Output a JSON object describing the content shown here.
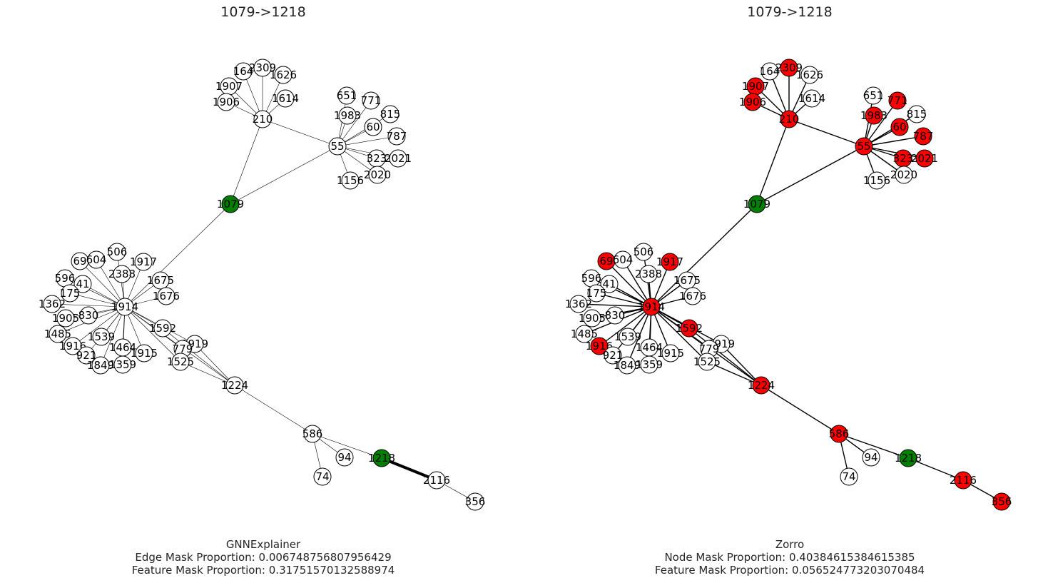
{
  "panels": [
    {
      "title": "1079->1218",
      "caption": {
        "method": "GNNExplainer",
        "line2": "Edge Mask Proportion: 0.006748756807956429",
        "line3": "Feature Mask Proportion: 0.31751570132588974"
      },
      "highlighted_nodes": [],
      "target_nodes": [
        "1079",
        "1218"
      ],
      "edge_style": "thin",
      "bold_edges": [
        [
          "1218",
          "2116"
        ]
      ]
    },
    {
      "title": "1079->1218",
      "caption": {
        "method": "Zorro",
        "line2": "Node Mask Proportion: 0.40384615384615385",
        "line3": "Feature Mask Proportion: 0.056524773203070484"
      },
      "highlighted_nodes": [
        "2309",
        "1907",
        "1906",
        "210",
        "771",
        "1983",
        "60",
        "787",
        "55",
        "323",
        "2021",
        "69",
        "1917",
        "1914",
        "1592",
        "1916",
        "1224",
        "586",
        "2116",
        "356"
      ],
      "target_nodes": [
        "1079",
        "1218"
      ],
      "edge_style": "normal",
      "bold_edges": []
    }
  ],
  "colors": {
    "node_default": "#ffffff",
    "node_target": "#008000",
    "node_highlight": "#ff0000",
    "node_stroke": "#000000",
    "edge": "#000000"
  },
  "graph": {
    "nodes": [
      {
        "id": "164"
      },
      {
        "id": "2309"
      },
      {
        "id": "1626"
      },
      {
        "id": "1907"
      },
      {
        "id": "1614"
      },
      {
        "id": "1906"
      },
      {
        "id": "210"
      },
      {
        "id": "651"
      },
      {
        "id": "771"
      },
      {
        "id": "1983"
      },
      {
        "id": "815"
      },
      {
        "id": "60"
      },
      {
        "id": "787"
      },
      {
        "id": "55"
      },
      {
        "id": "323"
      },
      {
        "id": "2021"
      },
      {
        "id": "2020"
      },
      {
        "id": "1156"
      },
      {
        "id": "1079"
      },
      {
        "id": "506"
      },
      {
        "id": "69"
      },
      {
        "id": "604"
      },
      {
        "id": "1917"
      },
      {
        "id": "2388"
      },
      {
        "id": "596"
      },
      {
        "id": "41"
      },
      {
        "id": "1675"
      },
      {
        "id": "175"
      },
      {
        "id": "1676"
      },
      {
        "id": "1362"
      },
      {
        "id": "1914"
      },
      {
        "id": "1905"
      },
      {
        "id": "830"
      },
      {
        "id": "1592"
      },
      {
        "id": "1485"
      },
      {
        "id": "1539"
      },
      {
        "id": "1919"
      },
      {
        "id": "1916"
      },
      {
        "id": "1464"
      },
      {
        "id": "779"
      },
      {
        "id": "921"
      },
      {
        "id": "1915"
      },
      {
        "id": "1525"
      },
      {
        "id": "1849"
      },
      {
        "id": "1359"
      },
      {
        "id": "1224"
      },
      {
        "id": "586"
      },
      {
        "id": "94"
      },
      {
        "id": "1218"
      },
      {
        "id": "74"
      },
      {
        "id": "2116"
      },
      {
        "id": "356"
      }
    ],
    "edges": [
      [
        "210",
        "164"
      ],
      [
        "210",
        "2309"
      ],
      [
        "210",
        "1626"
      ],
      [
        "210",
        "1907"
      ],
      [
        "210",
        "1614"
      ],
      [
        "210",
        "1906"
      ],
      [
        "210",
        "55"
      ],
      [
        "210",
        "1079"
      ],
      [
        "55",
        "651"
      ],
      [
        "55",
        "771"
      ],
      [
        "55",
        "1983"
      ],
      [
        "55",
        "815"
      ],
      [
        "55",
        "60"
      ],
      [
        "55",
        "787"
      ],
      [
        "55",
        "323"
      ],
      [
        "55",
        "2021"
      ],
      [
        "55",
        "2020"
      ],
      [
        "55",
        "1156"
      ],
      [
        "55",
        "1079"
      ],
      [
        "1079",
        "1914"
      ],
      [
        "1914",
        "506"
      ],
      [
        "1914",
        "69"
      ],
      [
        "1914",
        "604"
      ],
      [
        "1914",
        "1917"
      ],
      [
        "1914",
        "2388"
      ],
      [
        "1914",
        "596"
      ],
      [
        "1914",
        "41"
      ],
      [
        "1914",
        "1675"
      ],
      [
        "1914",
        "175"
      ],
      [
        "1914",
        "1676"
      ],
      [
        "1914",
        "1362"
      ],
      [
        "1914",
        "1905"
      ],
      [
        "1914",
        "830"
      ],
      [
        "1914",
        "1592"
      ],
      [
        "1914",
        "1485"
      ],
      [
        "1914",
        "1539"
      ],
      [
        "1914",
        "1919"
      ],
      [
        "1914",
        "1916"
      ],
      [
        "1914",
        "1464"
      ],
      [
        "1914",
        "779"
      ],
      [
        "1914",
        "921"
      ],
      [
        "1914",
        "1915"
      ],
      [
        "1914",
        "1525"
      ],
      [
        "1914",
        "1849"
      ],
      [
        "1914",
        "1359"
      ],
      [
        "1914",
        "1224"
      ],
      [
        "1592",
        "1224"
      ],
      [
        "1525",
        "1224"
      ],
      [
        "1919",
        "1224"
      ],
      [
        "1224",
        "586"
      ],
      [
        "586",
        "94"
      ],
      [
        "586",
        "74"
      ],
      [
        "586",
        "1218"
      ],
      [
        "1218",
        "2116"
      ],
      [
        "2116",
        "356"
      ]
    ]
  }
}
